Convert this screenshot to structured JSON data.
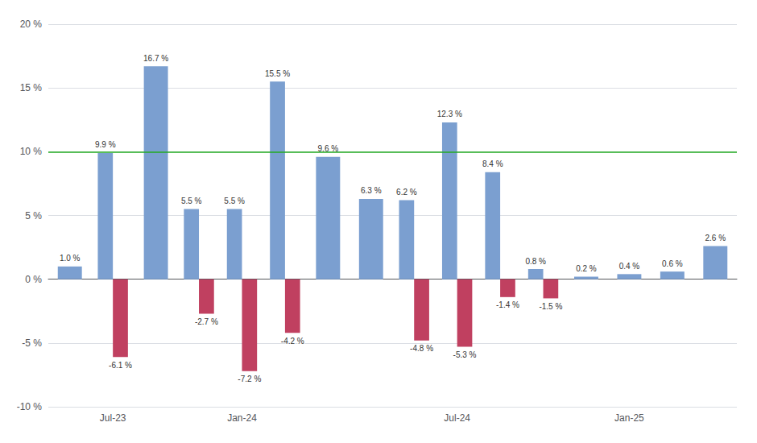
{
  "chart_data": {
    "type": "bar",
    "categories": [
      null,
      "Jul-23",
      null,
      null,
      "Jan-24",
      null,
      null,
      null,
      null,
      "Jul-24",
      null,
      null,
      null,
      "Jan-25",
      null,
      null
    ],
    "series": [
      {
        "color": "#7B9FD0",
        "values": [
          1.0,
          9.9,
          16.7,
          5.5,
          5.5,
          15.5,
          9.6,
          6.3,
          6.2,
          12.3,
          8.4,
          0.8,
          0.2,
          0.4,
          0.6,
          2.6
        ],
        "value_labels": [
          "1.0 %",
          "9.9 %",
          "16.7 %",
          "5.5 %",
          "5.5 %",
          "15.5 %",
          "9.6 %",
          "6.3 %",
          "6.2 %",
          "12.3 %",
          "8.4 %",
          "0.8 %",
          "0.2 %",
          "0.4 %",
          "0.6 %",
          "2.6 %"
        ]
      },
      {
        "color": "#C04060",
        "values": [
          null,
          -6.1,
          null,
          -2.7,
          -7.2,
          -4.2,
          null,
          null,
          -4.8,
          -5.3,
          -1.4,
          -1.5,
          null,
          null,
          null,
          null
        ],
        "value_labels": [
          null,
          "-6.1 %",
          null,
          "-2.7 %",
          "-7.2 %",
          "-4.2 %",
          null,
          null,
          "-4.8 %",
          "-5.3 %",
          "-1.4 %",
          "-1.5 %",
          null,
          null,
          null,
          null
        ]
      }
    ],
    "ylim": [
      -10,
      20
    ],
    "yticks": [
      {
        "value": -10,
        "label": "-10 %"
      },
      {
        "value": -5,
        "label": "-5 %"
      },
      {
        "value": 0,
        "label": "0 %"
      },
      {
        "value": 5,
        "label": "5 %"
      },
      {
        "value": 10,
        "label": "10 %"
      },
      {
        "value": 15,
        "label": "15 %"
      },
      {
        "value": 20,
        "label": "20 %"
      }
    ],
    "grid": true,
    "data_labels": true,
    "reference_lines": [
      {
        "y": 10,
        "color": "#22AA22"
      }
    ]
  }
}
